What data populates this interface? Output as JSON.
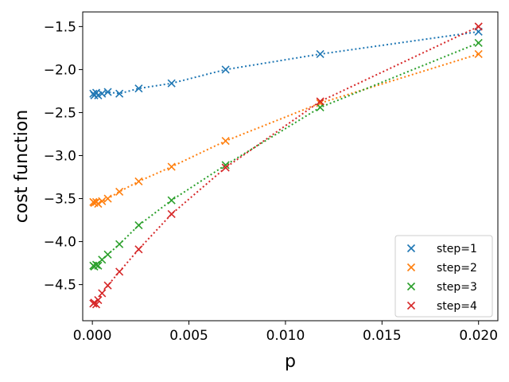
{
  "chart_data": {
    "type": "scatter",
    "xlabel": "p",
    "ylabel": "cost function",
    "xlim": [
      -0.0005,
      0.021
    ],
    "ylim": [
      -4.92,
      -1.33
    ],
    "xticks": [
      0.0,
      0.005,
      0.01,
      0.015,
      0.02
    ],
    "xtick_labels": [
      "0.000",
      "0.005",
      "0.010",
      "0.015",
      "0.020"
    ],
    "yticks": [
      -4.5,
      -4.0,
      -3.5,
      -3.0,
      -2.5,
      -2.0,
      -1.5
    ],
    "ytick_labels": [
      "−4.5",
      "−4.0",
      "−3.5",
      "−3.0",
      "−2.5",
      "−2.0",
      "−1.5"
    ],
    "grid": false,
    "legend_position": "lower-right",
    "marker": "x",
    "line_style": "dotted",
    "series": [
      {
        "name": "step=1",
        "color": "#1f77b4",
        "x": [
          5e-05,
          0.0001,
          0.0002,
          0.0003,
          0.0005,
          0.0008,
          0.0014,
          0.0024,
          0.0041,
          0.0069,
          0.0118,
          0.02
        ],
        "y": [
          -2.28,
          -2.3,
          -2.27,
          -2.3,
          -2.28,
          -2.26,
          -2.28,
          -2.22,
          -2.16,
          -2.0,
          -1.82,
          -1.56
        ]
      },
      {
        "name": "step=2",
        "color": "#ff7f0e",
        "x": [
          5e-05,
          0.0001,
          0.0002,
          0.0003,
          0.0005,
          0.0008,
          0.0014,
          0.0024,
          0.0041,
          0.0069,
          0.0118,
          0.02
        ],
        "y": [
          -3.54,
          -3.55,
          -3.54,
          -3.56,
          -3.53,
          -3.5,
          -3.42,
          -3.3,
          -3.13,
          -2.83,
          -2.39,
          -1.82
        ]
      },
      {
        "name": "step=3",
        "color": "#2ca02c",
        "x": [
          5e-05,
          0.0001,
          0.0002,
          0.0003,
          0.0005,
          0.0008,
          0.0014,
          0.0024,
          0.0041,
          0.0069,
          0.0118,
          0.02
        ],
        "y": [
          -4.28,
          -4.29,
          -4.27,
          -4.28,
          -4.21,
          -4.15,
          -4.03,
          -3.81,
          -3.52,
          -3.11,
          -2.44,
          -1.69
        ]
      },
      {
        "name": "step=4",
        "color": "#d62728",
        "x": [
          5e-05,
          0.0001,
          0.0002,
          0.0003,
          0.0005,
          0.0008,
          0.0014,
          0.0024,
          0.0041,
          0.0069,
          0.0118,
          0.02
        ],
        "y": [
          -4.72,
          -4.71,
          -4.73,
          -4.68,
          -4.6,
          -4.51,
          -4.35,
          -4.09,
          -3.68,
          -3.14,
          -2.37,
          -1.5
        ]
      }
    ]
  }
}
